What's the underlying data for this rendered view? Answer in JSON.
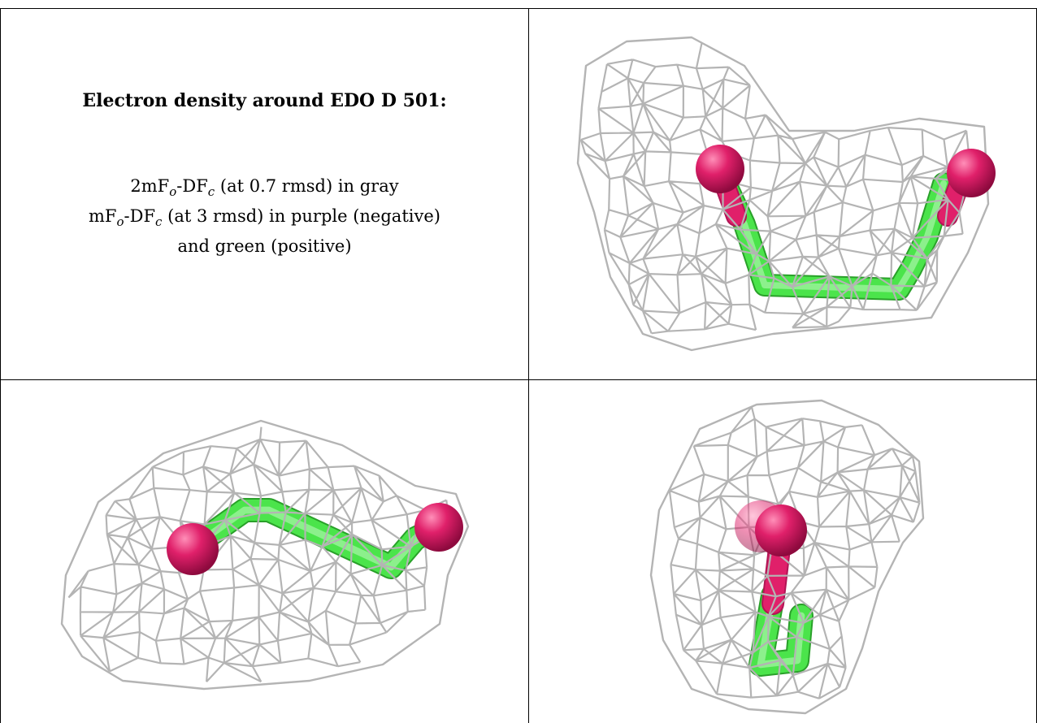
{
  "caption": {
    "title": "Electron density around EDO D 501:",
    "line1": {
      "a": "2mF",
      "b": "o",
      "c": "-DF",
      "d": "c",
      "e": " (at 0.7 rmsd) in gray"
    },
    "line2": {
      "a": "mF",
      "b": "o",
      "c": "-DF",
      "d": "c",
      "e": " (at 3 rmsd) in purple (negative)"
    },
    "line3": "and green (positive)"
  },
  "colors": {
    "mesh": "#b4b4b4",
    "bond": "#4be44b",
    "oxygen": "#e0206a",
    "border": "#000000"
  },
  "views": [
    {
      "name": "view-top-right"
    },
    {
      "name": "view-bottom-left"
    },
    {
      "name": "view-bottom-right"
    }
  ]
}
